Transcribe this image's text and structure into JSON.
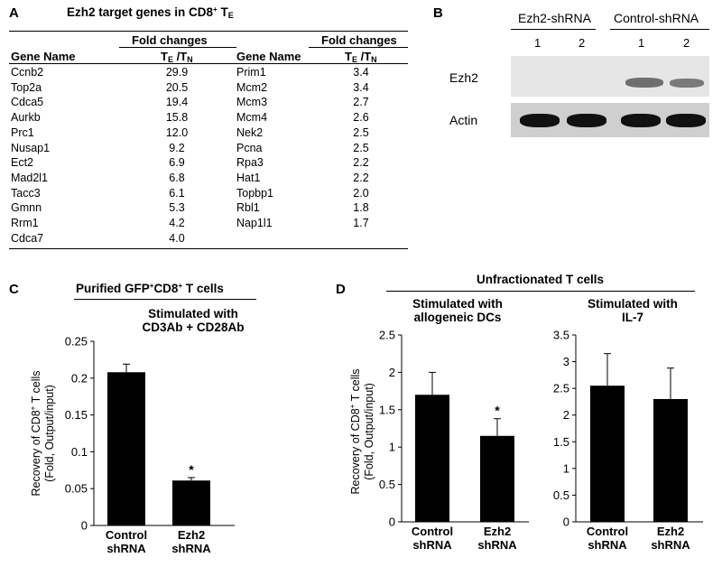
{
  "panel_a": {
    "label": "A",
    "title": "Ezh2 target genes in CD8",
    "title_sup": "+",
    "title_tail": " T",
    "title_sub": "E",
    "gene_header": "Gene Name",
    "fold_header": "Fold changes",
    "ratio_t1": "T",
    "ratio_s1": "E",
    "ratio_mid": " /T",
    "ratio_s2": "N",
    "left_rows": [
      {
        "gene": "Ccnb2",
        "fold": "29.9"
      },
      {
        "gene": "Top2a",
        "fold": "20.5"
      },
      {
        "gene": "Cdca5",
        "fold": "19.4"
      },
      {
        "gene": "Aurkb",
        "fold": "15.8"
      },
      {
        "gene": "Prc1",
        "fold": "12.0"
      },
      {
        "gene": "Nusap1",
        "fold": "9.2"
      },
      {
        "gene": "Ect2",
        "fold": "6.9"
      },
      {
        "gene": "Mad2l1",
        "fold": "6.8"
      },
      {
        "gene": "Tacc3",
        "fold": "6.1"
      },
      {
        "gene": "Gmnn",
        "fold": "5.3"
      },
      {
        "gene": "Rrm1",
        "fold": "4.2"
      },
      {
        "gene": "Cdca7",
        "fold": "4.0"
      }
    ],
    "right_rows": [
      {
        "gene": "Prim1",
        "fold": "3.4"
      },
      {
        "gene": "Mcm2",
        "fold": "3.4"
      },
      {
        "gene": "Mcm3",
        "fold": "2.7"
      },
      {
        "gene": "Mcm4",
        "fold": "2.6"
      },
      {
        "gene": "Nek2",
        "fold": "2.5"
      },
      {
        "gene": "Pcna",
        "fold": "2.5"
      },
      {
        "gene": "Rpa3",
        "fold": "2.2"
      },
      {
        "gene": "Hat1",
        "fold": "2.2"
      },
      {
        "gene": "Topbp1",
        "fold": "2.0"
      },
      {
        "gene": "Rbl1",
        "fold": "1.8"
      },
      {
        "gene": "Nap1l1",
        "fold": "1.7"
      }
    ]
  },
  "panel_b": {
    "label": "B",
    "group1": "Ezh2-shRNA",
    "group2": "Control-shRNA",
    "lanes": [
      "1",
      "2",
      "1",
      "2"
    ],
    "row1": "Ezh2",
    "row2": "Actin"
  },
  "panel_c": {
    "label": "C",
    "header_pre": "Purified GFP",
    "header_sup1": "+",
    "header_mid": "CD8",
    "header_sup2": "+",
    "header_post": " T cells",
    "sub_line1": "Stimulated with",
    "sub_line2": "CD3Ab + CD28Ab"
  },
  "panel_d": {
    "label": "D",
    "header": "Unfractionated T cells",
    "left_line1": "Stimulated with",
    "left_line2": "allogeneic DCs",
    "right_line1": "Stimulated with",
    "right_line2": "IL-7"
  },
  "ylabel_line1_pre": "Recovery of CD8",
  "ylabel_sup": "+",
  "ylabel_line1_post": " T cells",
  "ylabel_line2": "(Fold, Output/input)",
  "chart_data": [
    {
      "type": "bar",
      "categories": [
        [
          "Control",
          "shRNA"
        ],
        [
          "Ezh2",
          "shRNA"
        ]
      ],
      "values": [
        0.208,
        0.061
      ],
      "errors": [
        0.011,
        0.004
      ],
      "significance": [
        "",
        "*"
      ],
      "ylim": [
        0,
        0.25
      ],
      "yticks": [
        "0",
        "0.05",
        "0.1",
        "0.15",
        "0.2",
        "0.25"
      ],
      "bar_color": "#000000"
    },
    {
      "type": "bar",
      "categories": [
        [
          "Control",
          "shRNA"
        ],
        [
          "Ezh2",
          "shRNA"
        ]
      ],
      "values": [
        1.7,
        1.15
      ],
      "errors": [
        0.3,
        0.23
      ],
      "significance": [
        "",
        "*"
      ],
      "ylim": [
        0,
        2.5
      ],
      "yticks": [
        "0",
        "0.5",
        "1",
        "1.5",
        "2",
        "2.5"
      ],
      "bar_color": "#000000"
    },
    {
      "type": "bar",
      "categories": [
        [
          "Control",
          "shRNA"
        ],
        [
          "Ezh2",
          "shRNA"
        ]
      ],
      "values": [
        2.55,
        2.3
      ],
      "errors": [
        0.6,
        0.58
      ],
      "significance": [
        "",
        ""
      ],
      "ylim": [
        0,
        3.5
      ],
      "yticks": [
        "0",
        "0.5",
        "1",
        "1.5",
        "2",
        "2.5",
        "3",
        "3.5"
      ],
      "bar_color": "#000000"
    }
  ]
}
